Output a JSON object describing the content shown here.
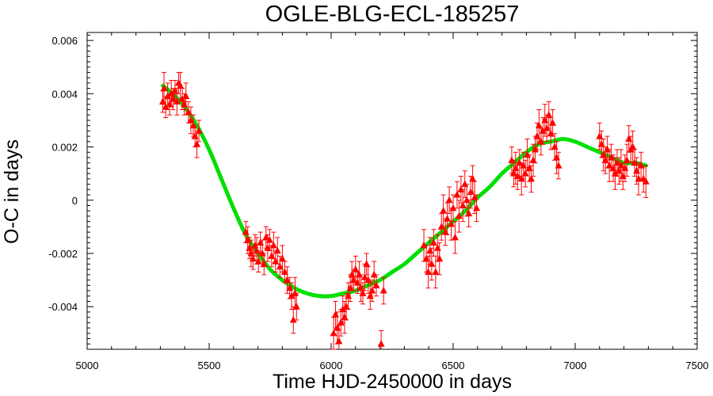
{
  "chart_data": {
    "type": "scatter",
    "title": "OGLE-BLG-ECL-185257",
    "xlabel": "Time HJD-2450000 in days",
    "ylabel": "O-C in days",
    "xlim": [
      5000,
      7500
    ],
    "ylim": [
      -0.0056,
      0.0063
    ],
    "x_ticks": [
      5000,
      5500,
      6000,
      6500,
      7000,
      7500
    ],
    "x_tick_labels": [
      "5000",
      "5500",
      "6000",
      "6500",
      "7000",
      "7500"
    ],
    "y_ticks": [
      0.006,
      0.004,
      0.002,
      0,
      -0.002,
      -0.004
    ],
    "y_tick_labels": [
      "0.006",
      "0.004",
      "0.002",
      "0",
      "-0.002",
      "-0.004"
    ],
    "grid": false,
    "legend": "none",
    "colors": {
      "points": "#ff0000",
      "fit": "#00e000",
      "axes": "#000000"
    },
    "series": [
      {
        "type": "scatter-errorbar",
        "points": [
          [
            5310,
            0.0037,
            0.0004
          ],
          [
            5315,
            0.0042,
            0.0006
          ],
          [
            5322,
            0.0035,
            0.0004
          ],
          [
            5330,
            0.0039,
            0.0005
          ],
          [
            5338,
            0.0036,
            0.0004
          ],
          [
            5345,
            0.004,
            0.0005
          ],
          [
            5352,
            0.0038,
            0.0004
          ],
          [
            5360,
            0.0041,
            0.0004
          ],
          [
            5368,
            0.0037,
            0.0005
          ],
          [
            5375,
            0.0044,
            0.0004
          ],
          [
            5382,
            0.0043,
            0.0005
          ],
          [
            5390,
            0.0038,
            0.0004
          ],
          [
            5398,
            0.0036,
            0.0004
          ],
          [
            5405,
            0.0039,
            0.0005
          ],
          [
            5415,
            0.0033,
            0.0004
          ],
          [
            5425,
            0.003,
            0.0005
          ],
          [
            5435,
            0.0028,
            0.0004
          ],
          [
            5442,
            0.0024,
            0.0004
          ],
          [
            5450,
            0.0021,
            0.0005
          ],
          [
            5458,
            0.0026,
            0.0004
          ],
          [
            5650,
            -0.0012,
            0.0004
          ],
          [
            5658,
            -0.0015,
            0.0005
          ],
          [
            5665,
            -0.0018,
            0.0004
          ],
          [
            5672,
            -0.002,
            0.0005
          ],
          [
            5680,
            -0.0022,
            0.0004
          ],
          [
            5688,
            -0.0017,
            0.0004
          ],
          [
            5695,
            -0.0019,
            0.0005
          ],
          [
            5702,
            -0.0023,
            0.0004
          ],
          [
            5710,
            -0.0016,
            0.0004
          ],
          [
            5718,
            -0.002,
            0.0005
          ],
          [
            5725,
            -0.0024,
            0.0004
          ],
          [
            5733,
            -0.0014,
            0.0004
          ],
          [
            5740,
            -0.0018,
            0.0005
          ],
          [
            5748,
            -0.0015,
            0.0004
          ],
          [
            5756,
            -0.0021,
            0.0004
          ],
          [
            5764,
            -0.0017,
            0.0005
          ],
          [
            5772,
            -0.0023,
            0.0004
          ],
          [
            5780,
            -0.0019,
            0.0005
          ],
          [
            5790,
            -0.0025,
            0.0004
          ],
          [
            5800,
            -0.0022,
            0.0005
          ],
          [
            5810,
            -0.0027,
            0.0004
          ],
          [
            5820,
            -0.003,
            0.0005
          ],
          [
            5830,
            -0.0033,
            0.0004
          ],
          [
            5838,
            -0.0036,
            0.0005
          ],
          [
            5845,
            -0.0045,
            0.0005
          ],
          [
            5852,
            -0.0035,
            0.0006
          ],
          [
            5858,
            -0.004,
            0.0005
          ],
          [
            6010,
            -0.005,
            0.0006
          ],
          [
            6018,
            -0.0043,
            0.0005
          ],
          [
            6025,
            -0.0048,
            0.0006
          ],
          [
            6032,
            -0.0053,
            0.0006
          ],
          [
            6040,
            -0.0046,
            0.0005
          ],
          [
            6048,
            -0.0041,
            0.0005
          ],
          [
            6055,
            -0.0044,
            0.0006
          ],
          [
            6062,
            -0.004,
            0.0005
          ],
          [
            6070,
            -0.0036,
            0.0005
          ],
          [
            6078,
            -0.0033,
            0.0005
          ],
          [
            6085,
            -0.0028,
            0.0005
          ],
          [
            6092,
            -0.003,
            0.0004
          ],
          [
            6100,
            -0.0026,
            0.0005
          ],
          [
            6108,
            -0.0031,
            0.0004
          ],
          [
            6115,
            -0.0028,
            0.0005
          ],
          [
            6122,
            -0.0033,
            0.0005
          ],
          [
            6130,
            -0.0035,
            0.0004
          ],
          [
            6138,
            -0.0029,
            0.0005
          ],
          [
            6145,
            -0.0024,
            0.0004
          ],
          [
            6152,
            -0.003,
            0.0005
          ],
          [
            6160,
            -0.0036,
            0.0005
          ],
          [
            6168,
            -0.0034,
            0.0004
          ],
          [
            6176,
            -0.0028,
            0.0005
          ],
          [
            6185,
            -0.0032,
            0.0004
          ],
          [
            6205,
            -0.0054,
            0.0005
          ],
          [
            6215,
            -0.0034,
            0.0005
          ],
          [
            6380,
            -0.0017,
            0.0006
          ],
          [
            6390,
            -0.0022,
            0.0005
          ],
          [
            6398,
            -0.0027,
            0.0006
          ],
          [
            6405,
            -0.0019,
            0.0005
          ],
          [
            6412,
            -0.0024,
            0.0006
          ],
          [
            6420,
            -0.0016,
            0.0005
          ],
          [
            6428,
            -0.0027,
            0.0006
          ],
          [
            6436,
            -0.0018,
            0.0005
          ],
          [
            6444,
            -0.0022,
            0.0006
          ],
          [
            6452,
            -0.001,
            0.0005
          ],
          [
            6460,
            -0.0004,
            0.0006
          ],
          [
            6468,
            -0.0012,
            0.0005
          ],
          [
            6476,
            -0.0007,
            0.0006
          ],
          [
            6484,
            0.0,
            0.0005
          ],
          [
            6492,
            -0.0009,
            0.0006
          ],
          [
            6500,
            -0.0003,
            0.0005
          ],
          [
            6508,
            -0.0014,
            0.0006
          ],
          [
            6516,
            0.0002,
            0.0005
          ],
          [
            6524,
            -0.0006,
            0.0006
          ],
          [
            6532,
            0.0004,
            0.0005
          ],
          [
            6540,
            -0.0002,
            0.0006
          ],
          [
            6548,
            0.0006,
            0.0005
          ],
          [
            6556,
            0.0,
            0.0006
          ],
          [
            6564,
            -0.0005,
            0.0005
          ],
          [
            6572,
            0.0003,
            0.0006
          ],
          [
            6580,
            0.0008,
            0.0005
          ],
          [
            6588,
            0.0001,
            0.0006
          ],
          [
            6596,
            -0.0003,
            0.0005
          ],
          [
            6740,
            0.0015,
            0.0005
          ],
          [
            6748,
            0.001,
            0.0005
          ],
          [
            6756,
            0.0012,
            0.0006
          ],
          [
            6764,
            0.0009,
            0.0005
          ],
          [
            6772,
            0.0014,
            0.0005
          ],
          [
            6780,
            0.0008,
            0.0006
          ],
          [
            6788,
            0.0013,
            0.0005
          ],
          [
            6796,
            0.001,
            0.0005
          ],
          [
            6804,
            0.0017,
            0.0006
          ],
          [
            6812,
            0.0012,
            0.0005
          ],
          [
            6820,
            0.0008,
            0.0005
          ],
          [
            6828,
            0.0015,
            0.0006
          ],
          [
            6836,
            0.0019,
            0.0005
          ],
          [
            6844,
            0.0024,
            0.0005
          ],
          [
            6852,
            0.0028,
            0.0006
          ],
          [
            6860,
            0.0022,
            0.0005
          ],
          [
            6868,
            0.0026,
            0.0005
          ],
          [
            6876,
            0.003,
            0.0006
          ],
          [
            6884,
            0.0027,
            0.0005
          ],
          [
            6892,
            0.0032,
            0.0005
          ],
          [
            6900,
            0.0025,
            0.0006
          ],
          [
            6908,
            0.0029,
            0.0005
          ],
          [
            6916,
            0.002,
            0.0005
          ],
          [
            6924,
            0.0016,
            0.0006
          ],
          [
            6932,
            0.0013,
            0.0005
          ],
          [
            7100,
            0.0024,
            0.0005
          ],
          [
            7108,
            0.0021,
            0.0005
          ],
          [
            7116,
            0.0017,
            0.0006
          ],
          [
            7124,
            0.0015,
            0.0005
          ],
          [
            7132,
            0.0019,
            0.0005
          ],
          [
            7140,
            0.0013,
            0.0006
          ],
          [
            7148,
            0.0016,
            0.0005
          ],
          [
            7156,
            0.0012,
            0.0005
          ],
          [
            7164,
            0.001,
            0.0006
          ],
          [
            7172,
            0.0014,
            0.0005
          ],
          [
            7180,
            0.0011,
            0.0005
          ],
          [
            7188,
            0.0013,
            0.0006
          ],
          [
            7196,
            0.0009,
            0.0005
          ],
          [
            7204,
            0.0012,
            0.0005
          ],
          [
            7212,
            0.0015,
            0.0006
          ],
          [
            7220,
            0.0023,
            0.0005
          ],
          [
            7228,
            0.0019,
            0.0005
          ],
          [
            7236,
            0.002,
            0.0006
          ],
          [
            7244,
            0.0014,
            0.0005
          ],
          [
            7252,
            0.0011,
            0.0005
          ],
          [
            7260,
            0.0008,
            0.0006
          ],
          [
            7270,
            0.0013,
            0.0005
          ],
          [
            7280,
            0.0008,
            0.0005
          ],
          [
            7290,
            0.0007,
            0.0006
          ]
        ]
      },
      {
        "type": "line",
        "x": [
          5310,
          5350,
          5400,
          5450,
          5500,
          5550,
          5600,
          5650,
          5700,
          5750,
          5800,
          5850,
          5900,
          5950,
          6000,
          6050,
          6100,
          6150,
          6200,
          6250,
          6300,
          6350,
          6400,
          6450,
          6500,
          6550,
          6600,
          6650,
          6700,
          6750,
          6800,
          6850,
          6900,
          6950,
          7000,
          7050,
          7100,
          7150,
          7200,
          7250,
          7290
        ],
        "y": [
          0.0043,
          0.004,
          0.0035,
          0.0028,
          0.0019,
          0.0008,
          -0.0003,
          -0.0013,
          -0.002,
          -0.0026,
          -0.003,
          -0.0033,
          -0.0035,
          -0.0036,
          -0.0036,
          -0.0035,
          -0.0034,
          -0.0032,
          -0.003,
          -0.0027,
          -0.0024,
          -0.002,
          -0.0016,
          -0.0012,
          -0.0008,
          -0.0004,
          0.0001,
          0.0005,
          0.001,
          0.0014,
          0.0018,
          0.0021,
          0.0022,
          0.0023,
          0.0022,
          0.002,
          0.0018,
          0.0016,
          0.0014,
          0.0014,
          0.0013
        ]
      }
    ]
  }
}
